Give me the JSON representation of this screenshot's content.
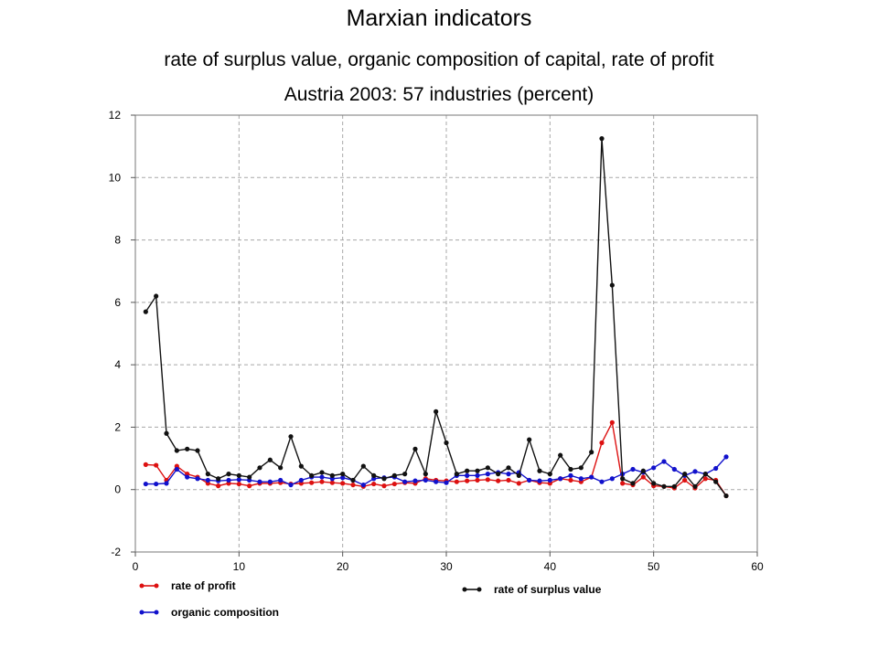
{
  "page": {
    "title": "Marxian indicators",
    "subtitle": "rate of surplus value, organic composition of capital, rate of profit",
    "subtitle2": "Austria 2003: 57 industries (percent)"
  },
  "chart_data": {
    "type": "line",
    "title": "Marxian indicators",
    "xlabel": "",
    "ylabel": "",
    "xlim": [
      0,
      60
    ],
    "ylim": [
      -2,
      12
    ],
    "x_ticks": [
      0,
      10,
      20,
      30,
      40,
      50,
      60
    ],
    "y_ticks": [
      -2,
      0,
      2,
      4,
      6,
      8,
      10,
      12
    ],
    "grid": true,
    "legend_position": "bottom",
    "x": [
      1,
      2,
      3,
      4,
      5,
      6,
      7,
      8,
      9,
      10,
      11,
      12,
      13,
      14,
      15,
      16,
      17,
      18,
      19,
      20,
      21,
      22,
      23,
      24,
      25,
      26,
      27,
      28,
      29,
      30,
      31,
      32,
      33,
      34,
      35,
      36,
      37,
      38,
      39,
      40,
      41,
      42,
      43,
      44,
      45,
      46,
      47,
      48,
      49,
      50,
      51,
      52,
      53,
      54,
      55,
      56,
      57
    ],
    "series": [
      {
        "name": "rate of profit",
        "color": "#dd1111",
        "values": [
          0.8,
          0.78,
          0.3,
          0.75,
          0.5,
          0.4,
          0.2,
          0.12,
          0.2,
          0.18,
          0.12,
          0.2,
          0.2,
          0.22,
          0.18,
          0.2,
          0.22,
          0.25,
          0.22,
          0.2,
          0.15,
          0.1,
          0.18,
          0.12,
          0.18,
          0.22,
          0.2,
          0.35,
          0.3,
          0.28,
          0.25,
          0.28,
          0.3,
          0.32,
          0.28,
          0.3,
          0.2,
          0.3,
          0.22,
          0.2,
          0.35,
          0.3,
          0.25,
          0.4,
          1.5,
          2.15,
          0.2,
          0.15,
          0.4,
          0.12,
          0.1,
          0.05,
          0.3,
          0.05,
          0.35,
          0.3,
          -0.2
        ]
      },
      {
        "name": "organic composition",
        "color": "#1111cc",
        "values": [
          0.18,
          0.18,
          0.2,
          0.65,
          0.4,
          0.35,
          0.3,
          0.28,
          0.3,
          0.32,
          0.3,
          0.25,
          0.25,
          0.3,
          0.15,
          0.3,
          0.4,
          0.4,
          0.35,
          0.38,
          0.3,
          0.15,
          0.35,
          0.38,
          0.4,
          0.25,
          0.28,
          0.3,
          0.25,
          0.22,
          0.45,
          0.45,
          0.45,
          0.5,
          0.55,
          0.5,
          0.55,
          0.3,
          0.28,
          0.3,
          0.35,
          0.45,
          0.35,
          0.4,
          0.25,
          0.35,
          0.5,
          0.65,
          0.55,
          0.7,
          0.9,
          0.65,
          0.45,
          0.58,
          0.5,
          0.68,
          1.05
        ]
      },
      {
        "name": "rate of surplus value",
        "color": "#111111",
        "values": [
          5.7,
          6.2,
          1.8,
          1.25,
          1.3,
          1.25,
          0.5,
          0.35,
          0.5,
          0.45,
          0.4,
          0.7,
          0.95,
          0.7,
          1.7,
          0.75,
          0.45,
          0.55,
          0.45,
          0.5,
          0.3,
          0.75,
          0.45,
          0.35,
          0.45,
          0.5,
          1.3,
          0.5,
          2.5,
          1.5,
          0.5,
          0.6,
          0.6,
          0.7,
          0.5,
          0.7,
          0.45,
          1.6,
          0.6,
          0.5,
          1.1,
          0.65,
          0.7,
          1.2,
          11.25,
          6.55,
          0.35,
          0.2,
          0.6,
          0.2,
          0.1,
          0.1,
          0.5,
          0.1,
          0.5,
          0.25,
          -0.2
        ]
      }
    ]
  }
}
